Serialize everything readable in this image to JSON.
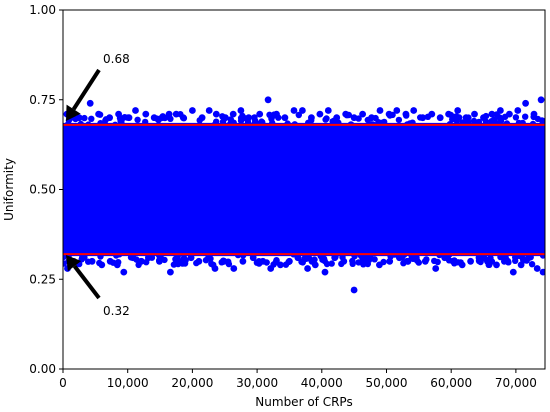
{
  "chart_data": {
    "type": "scatter",
    "xlabel": "Number of CRPs",
    "ylabel": "Uniformity",
    "xlim": [
      0,
      74500
    ],
    "ylim": [
      0,
      1
    ],
    "x_ticks": [
      0,
      10000,
      20000,
      30000,
      40000,
      50000,
      60000,
      70000
    ],
    "x_tick_labels": [
      "0",
      "10,000",
      "20,000",
      "30,000",
      "40,000",
      "50,000",
      "60,000",
      "70,000"
    ],
    "y_ticks": [
      0,
      0.25,
      0.5,
      0.75,
      1.0
    ],
    "y_tick_labels": [
      "0.00",
      "0.25",
      "0.50",
      "0.75",
      "1.00"
    ],
    "grid": false,
    "series": [
      {
        "color": "#0000ff",
        "n_points": 74500,
        "dense_band": [
          0.32,
          0.68
        ],
        "outliers": [
          {
            "x": 600,
            "y": 0.71
          },
          {
            "x": 1200,
            "y": 0.7
          },
          {
            "x": 2500,
            "y": 0.7
          },
          {
            "x": 4200,
            "y": 0.74
          },
          {
            "x": 5500,
            "y": 0.71
          },
          {
            "x": 7200,
            "y": 0.7
          },
          {
            "x": 8600,
            "y": 0.71
          },
          {
            "x": 10200,
            "y": 0.7
          },
          {
            "x": 11200,
            "y": 0.72
          },
          {
            "x": 12800,
            "y": 0.71
          },
          {
            "x": 14100,
            "y": 0.7
          },
          {
            "x": 15300,
            "y": 0.7
          },
          {
            "x": 16400,
            "y": 0.71
          },
          {
            "x": 17500,
            "y": 0.71
          },
          {
            "x": 18600,
            "y": 0.7
          },
          {
            "x": 20000,
            "y": 0.72
          },
          {
            "x": 21500,
            "y": 0.7
          },
          {
            "x": 22600,
            "y": 0.72
          },
          {
            "x": 23700,
            "y": 0.71
          },
          {
            "x": 25100,
            "y": 0.7
          },
          {
            "x": 26300,
            "y": 0.71
          },
          {
            "x": 27500,
            "y": 0.72
          },
          {
            "x": 28700,
            "y": 0.7
          },
          {
            "x": 30400,
            "y": 0.71
          },
          {
            "x": 31700,
            "y": 0.75
          },
          {
            "x": 33000,
            "y": 0.71
          },
          {
            "x": 34300,
            "y": 0.7
          },
          {
            "x": 35700,
            "y": 0.72
          },
          {
            "x": 37000,
            "y": 0.72
          },
          {
            "x": 38400,
            "y": 0.7
          },
          {
            "x": 39700,
            "y": 0.71
          },
          {
            "x": 41000,
            "y": 0.72
          },
          {
            "x": 42300,
            "y": 0.7
          },
          {
            "x": 43700,
            "y": 0.71
          },
          {
            "x": 45000,
            "y": 0.7
          },
          {
            "x": 46300,
            "y": 0.71
          },
          {
            "x": 47700,
            "y": 0.7
          },
          {
            "x": 49000,
            "y": 0.72
          },
          {
            "x": 50400,
            "y": 0.71
          },
          {
            "x": 51600,
            "y": 0.72
          },
          {
            "x": 53000,
            "y": 0.71
          },
          {
            "x": 54200,
            "y": 0.72
          },
          {
            "x": 55600,
            "y": 0.7
          },
          {
            "x": 57000,
            "y": 0.71
          },
          {
            "x": 58300,
            "y": 0.7
          },
          {
            "x": 59600,
            "y": 0.71
          },
          {
            "x": 61000,
            "y": 0.72
          },
          {
            "x": 62300,
            "y": 0.7
          },
          {
            "x": 63600,
            "y": 0.71
          },
          {
            "x": 65000,
            "y": 0.7
          },
          {
            "x": 66300,
            "y": 0.71
          },
          {
            "x": 67600,
            "y": 0.72
          },
          {
            "x": 69000,
            "y": 0.71
          },
          {
            "x": 70300,
            "y": 0.72
          },
          {
            "x": 71500,
            "y": 0.74
          },
          {
            "x": 72800,
            "y": 0.71
          },
          {
            "x": 73900,
            "y": 0.75
          },
          {
            "x": 700,
            "y": 0.28
          },
          {
            "x": 1500,
            "y": 0.3
          },
          {
            "x": 3000,
            "y": 0.31
          },
          {
            "x": 4500,
            "y": 0.3
          },
          {
            "x": 6000,
            "y": 0.29
          },
          {
            "x": 7300,
            "y": 0.3
          },
          {
            "x": 8400,
            "y": 0.29
          },
          {
            "x": 9400,
            "y": 0.27
          },
          {
            "x": 10800,
            "y": 0.31
          },
          {
            "x": 12100,
            "y": 0.3
          },
          {
            "x": 13200,
            "y": 0.31
          },
          {
            "x": 14900,
            "y": 0.3
          },
          {
            "x": 16600,
            "y": 0.27
          },
          {
            "x": 18000,
            "y": 0.3
          },
          {
            "x": 19800,
            "y": 0.31
          },
          {
            "x": 21000,
            "y": 0.3
          },
          {
            "x": 22500,
            "y": 0.31
          },
          {
            "x": 23500,
            "y": 0.28
          },
          {
            "x": 24900,
            "y": 0.3
          },
          {
            "x": 26400,
            "y": 0.28
          },
          {
            "x": 27800,
            "y": 0.3
          },
          {
            "x": 29400,
            "y": 0.31
          },
          {
            "x": 30900,
            "y": 0.3
          },
          {
            "x": 32100,
            "y": 0.28
          },
          {
            "x": 33600,
            "y": 0.29
          },
          {
            "x": 35000,
            "y": 0.3
          },
          {
            "x": 36300,
            "y": 0.31
          },
          {
            "x": 37800,
            "y": 0.28
          },
          {
            "x": 39000,
            "y": 0.29
          },
          {
            "x": 40500,
            "y": 0.27
          },
          {
            "x": 42000,
            "y": 0.31
          },
          {
            "x": 43400,
            "y": 0.3
          },
          {
            "x": 45000,
            "y": 0.22
          },
          {
            "x": 46300,
            "y": 0.3
          },
          {
            "x": 47500,
            "y": 0.31
          },
          {
            "x": 48900,
            "y": 0.29
          },
          {
            "x": 50500,
            "y": 0.3
          },
          {
            "x": 52000,
            "y": 0.31
          },
          {
            "x": 53300,
            "y": 0.3
          },
          {
            "x": 54600,
            "y": 0.31
          },
          {
            "x": 56000,
            "y": 0.3
          },
          {
            "x": 57600,
            "y": 0.28
          },
          {
            "x": 59000,
            "y": 0.31
          },
          {
            "x": 60300,
            "y": 0.3
          },
          {
            "x": 61700,
            "y": 0.29
          },
          {
            "x": 63000,
            "y": 0.3
          },
          {
            "x": 64300,
            "y": 0.31
          },
          {
            "x": 65600,
            "y": 0.3
          },
          {
            "x": 67000,
            "y": 0.29
          },
          {
            "x": 68400,
            "y": 0.31
          },
          {
            "x": 69600,
            "y": 0.27
          },
          {
            "x": 70800,
            "y": 0.29
          },
          {
            "x": 72000,
            "y": 0.31
          },
          {
            "x": 73300,
            "y": 0.28
          },
          {
            "x": 74200,
            "y": 0.27
          }
        ]
      }
    ],
    "reference_lines": [
      {
        "y": 0.68,
        "color": "#ff0000"
      },
      {
        "y": 0.32,
        "color": "#ff0000"
      }
    ],
    "annotations": [
      {
        "text": "0.68",
        "target_y": 0.68
      },
      {
        "text": "0.32",
        "target_y": 0.32
      }
    ]
  }
}
